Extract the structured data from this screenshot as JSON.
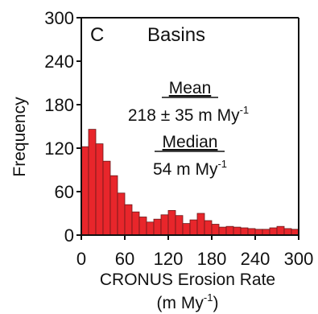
{
  "chart_data": {
    "type": "bar",
    "panel_letter": "C",
    "title": "Basins",
    "xlabel": "CRONUS Erosion Rate",
    "xlabel_unit": "(m My",
    "xlabel_unit_exp": "-1",
    "xlabel_unit_close": ")",
    "ylabel": "Frequency",
    "xlim": [
      0,
      300
    ],
    "ylim": [
      0,
      300
    ],
    "x_ticks": [
      "0",
      "60",
      "120",
      "180",
      "240",
      "300"
    ],
    "y_ticks": [
      "0",
      "60",
      "120",
      "180",
      "240",
      "300"
    ],
    "bin_width": 10,
    "bins": [
      {
        "x": 0,
        "value": 122
      },
      {
        "x": 10,
        "value": 146
      },
      {
        "x": 20,
        "value": 126
      },
      {
        "x": 30,
        "value": 102
      },
      {
        "x": 40,
        "value": 82
      },
      {
        "x": 50,
        "value": 58
      },
      {
        "x": 60,
        "value": 42
      },
      {
        "x": 70,
        "value": 32
      },
      {
        "x": 80,
        "value": 25
      },
      {
        "x": 90,
        "value": 18
      },
      {
        "x": 100,
        "value": 22
      },
      {
        "x": 110,
        "value": 28
      },
      {
        "x": 120,
        "value": 34
      },
      {
        "x": 130,
        "value": 27
      },
      {
        "x": 140,
        "value": 16
      },
      {
        "x": 150,
        "value": 21
      },
      {
        "x": 160,
        "value": 30
      },
      {
        "x": 170,
        "value": 20
      },
      {
        "x": 180,
        "value": 15
      },
      {
        "x": 190,
        "value": 11
      },
      {
        "x": 200,
        "value": 12
      },
      {
        "x": 210,
        "value": 11
      },
      {
        "x": 220,
        "value": 10
      },
      {
        "x": 230,
        "value": 9
      },
      {
        "x": 240,
        "value": 8
      },
      {
        "x": 250,
        "value": 8
      },
      {
        "x": 260,
        "value": 10
      },
      {
        "x": 270,
        "value": 12
      },
      {
        "x": 280,
        "value": 9
      },
      {
        "x": 290,
        "value": 8
      }
    ],
    "bar_color": "#e8262b",
    "bar_edge_color": "#6b1a1a",
    "annotations": {
      "mean_label": "Mean",
      "mean_value": "218 ± 35 m My",
      "mean_unit_exp": "-1",
      "median_label": "Median",
      "median_value": "54 m My",
      "median_unit_exp": "-1"
    },
    "grid": false,
    "legend": "none"
  }
}
